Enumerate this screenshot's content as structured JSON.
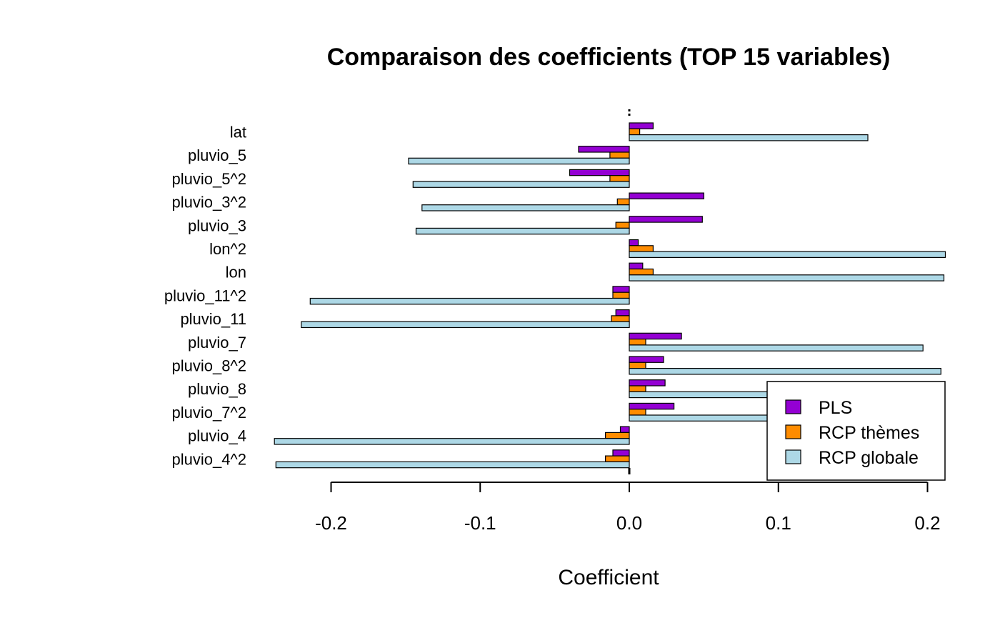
{
  "chart_data": {
    "type": "bar",
    "orientation": "horizontal",
    "title": "Comparaison des coefficients (TOP 15 variables)",
    "xlabel": "Coefficient",
    "ylabel": "",
    "xlim": [
      -0.2,
      0.2
    ],
    "xticks": [
      -0.2,
      -0.1,
      0.0,
      0.1,
      0.2
    ],
    "xtick_labels": [
      "-0.2",
      "-0.1",
      "0.0",
      "0.1",
      "0.2"
    ],
    "categories": [
      "lat",
      "pluvio_5",
      "pluvio_5^2",
      "pluvio_3^2",
      "pluvio_3",
      "lon^2",
      "lon",
      "pluvio_11^2",
      "pluvio_11",
      "pluvio_7",
      "pluvio_8^2",
      "pluvio_8",
      "pluvio_7^2",
      "pluvio_4",
      "pluvio_4^2"
    ],
    "series": [
      {
        "name": "PLS",
        "color": "#9400D3",
        "values": [
          0.016,
          -0.034,
          -0.04,
          0.05,
          0.049,
          0.006,
          0.009,
          -0.011,
          -0.009,
          0.035,
          0.023,
          0.024,
          0.03,
          -0.006,
          -0.011
        ]
      },
      {
        "name": "RCP thèmes",
        "color": "#FF8C00",
        "values": [
          0.007,
          -0.013,
          -0.013,
          -0.008,
          -0.009,
          0.016,
          0.016,
          -0.011,
          -0.012,
          0.011,
          0.011,
          0.011,
          0.011,
          -0.016,
          -0.016
        ]
      },
      {
        "name": "RCP globale",
        "color": "#ADD8E6",
        "values": [
          0.16,
          -0.148,
          -0.145,
          -0.139,
          -0.143,
          0.212,
          0.211,
          -0.214,
          -0.22,
          0.197,
          0.209,
          0.185,
          0.185,
          -0.238,
          -0.237
        ]
      }
    ],
    "legend": {
      "position": "bottom-right",
      "entries": [
        "PLS",
        "RCP thèmes",
        "RCP globale"
      ]
    },
    "grid": false
  }
}
